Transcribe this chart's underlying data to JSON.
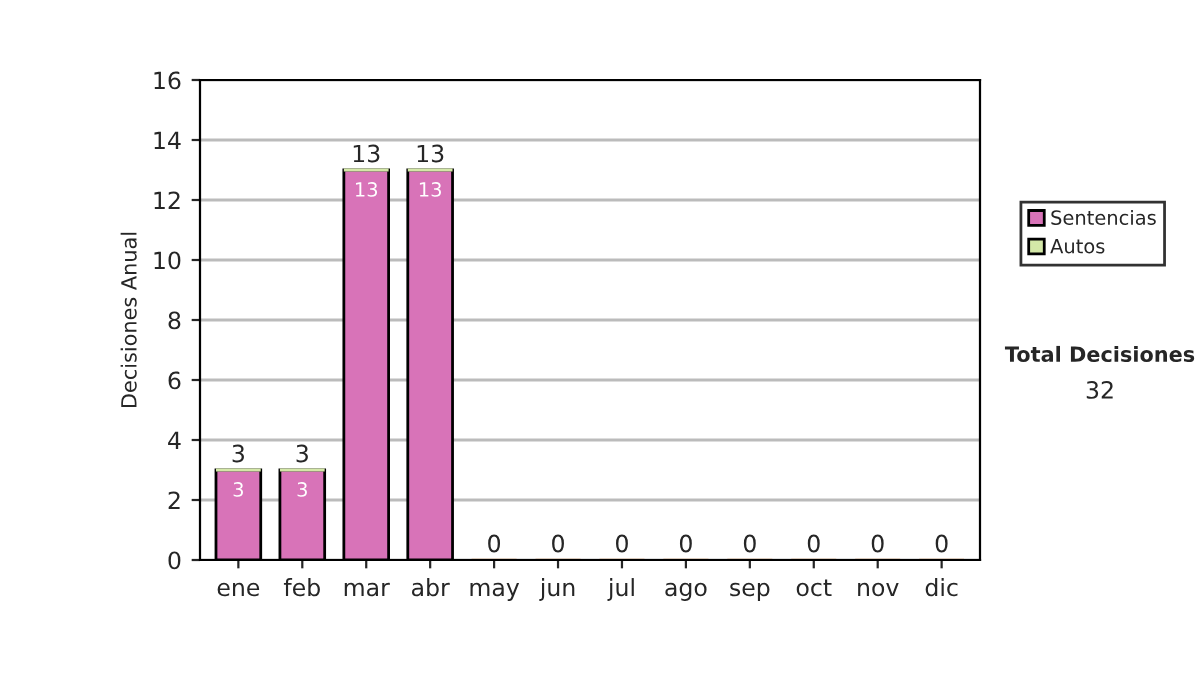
{
  "chart_data": {
    "type": "bar",
    "ylabel": "Decisiones Anual",
    "categories": [
      "ene",
      "feb",
      "mar",
      "abr",
      "may",
      "jun",
      "jul",
      "ago",
      "sep",
      "oct",
      "nov",
      "dic"
    ],
    "stacked": true,
    "series": [
      {
        "name": "Sentencias",
        "color": "#d873b8",
        "values": [
          3,
          3,
          13,
          13,
          0,
          0,
          0,
          0,
          0,
          0,
          0,
          0
        ],
        "value_labels": [
          "3",
          "3",
          "13",
          "13",
          null,
          null,
          null,
          null,
          null,
          null,
          null,
          null
        ]
      },
      {
        "name": "Autos",
        "color": "#d4e8a8",
        "values": [
          0,
          0,
          0,
          0,
          0,
          0,
          0,
          0,
          0,
          0,
          0,
          0
        ]
      }
    ],
    "totals": [
      "3",
      "3",
      "13",
      "13",
      "0",
      "0",
      "0",
      "0",
      "0",
      "0",
      "0",
      "0"
    ],
    "ylim": [
      0,
      16
    ],
    "yticks": [
      0,
      2,
      4,
      6,
      8,
      10,
      12,
      14,
      16
    ],
    "grid": "y",
    "legend": "right",
    "annotations": [
      "Total Decisiones",
      "32"
    ]
  }
}
